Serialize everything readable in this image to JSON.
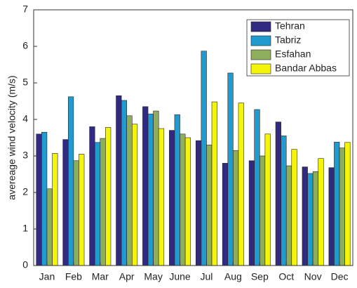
{
  "chart_data": {
    "type": "bar",
    "y_label": "avereage wind velocity (m/s)",
    "categories": [
      "Jan",
      "Feb",
      "Mar",
      "Apr",
      "May",
      "June",
      "Jul",
      "Aug",
      "Sep",
      "Oct",
      "Nov",
      "Dec"
    ],
    "series": [
      {
        "name": "Tehran",
        "color": "#302b80",
        "values": [
          3.6,
          3.45,
          3.8,
          4.65,
          4.35,
          3.7,
          3.42,
          2.8,
          2.87,
          3.93,
          2.7,
          2.68
        ]
      },
      {
        "name": "Tabriz",
        "color": "#1f9bcf",
        "values": [
          3.65,
          4.62,
          3.37,
          4.52,
          4.15,
          4.13,
          5.87,
          5.27,
          4.27,
          3.55,
          2.52,
          3.38
        ]
      },
      {
        "name": "Esfahan",
        "color": "#8fae5c",
        "values": [
          2.1,
          2.87,
          3.48,
          4.1,
          4.23,
          3.6,
          3.3,
          3.15,
          3.0,
          2.73,
          2.57,
          3.22
        ]
      },
      {
        "name": "Bandar Abbas",
        "color": "#f5f50a",
        "values": [
          3.07,
          3.05,
          3.78,
          3.87,
          3.75,
          3.5,
          4.48,
          4.45,
          3.6,
          3.18,
          2.93,
          3.37
        ]
      }
    ],
    "ylim": [
      0,
      7
    ],
    "yticks": [
      0,
      1,
      2,
      3,
      4,
      5,
      6,
      7
    ],
    "legend": "upper right"
  }
}
